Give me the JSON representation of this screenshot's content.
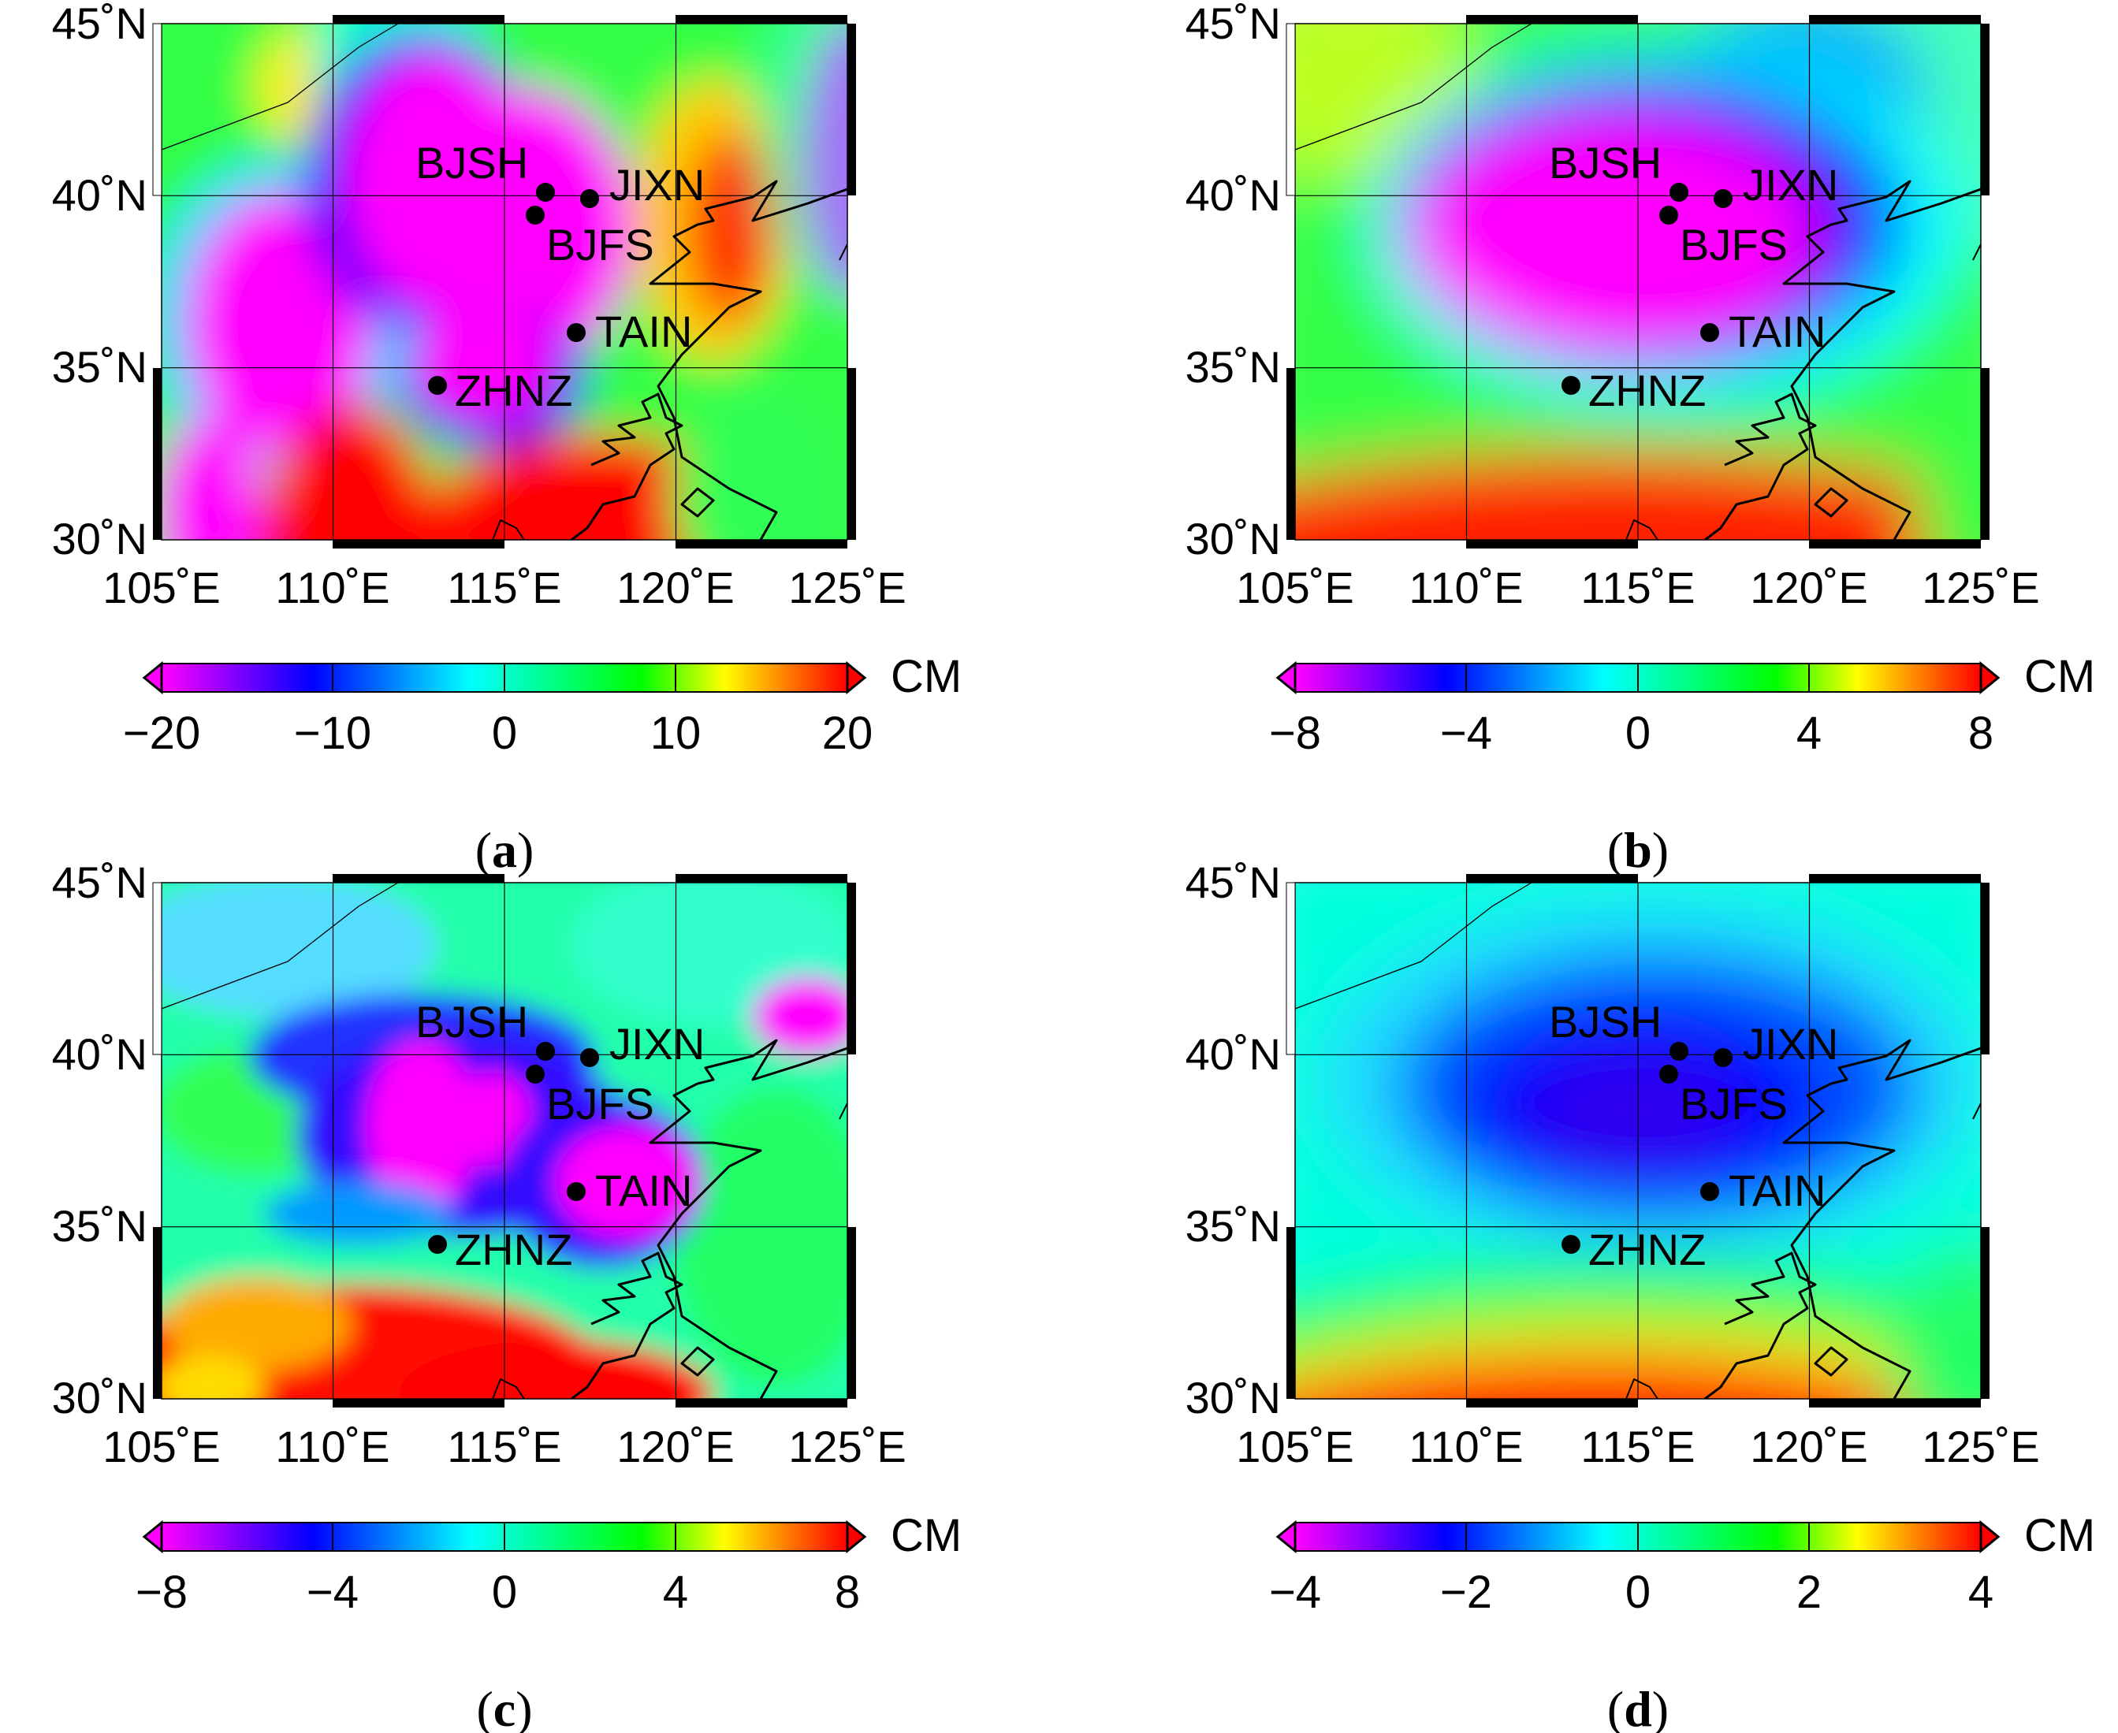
{
  "figure": {
    "lon_ticks": [
      "105˚E",
      "110˚E",
      "115˚E",
      "120˚E",
      "125˚E"
    ],
    "lat_ticks": [
      "30˚N",
      "35˚N",
      "40˚N",
      "45˚N"
    ],
    "lon_range": [
      105,
      125
    ],
    "lat_range": [
      30,
      45
    ],
    "stations": [
      {
        "name": "BJSH",
        "lon": 116.2,
        "lat": 40.3
      },
      {
        "name": "JIXN",
        "lon": 117.5,
        "lat": 40.1
      },
      {
        "name": "BJFS",
        "lon": 115.9,
        "lat": 39.6
      },
      {
        "name": "TAIN",
        "lon": 117.1,
        "lat": 36.2
      },
      {
        "name": "ZHNZ",
        "lon": 113.1,
        "lat": 34.5
      }
    ],
    "colorbar_unit": "CM",
    "colors": {
      "colormap": [
        "#ff00ff",
        "#0000ff",
        "#00ffff",
        "#00ff00",
        "#ffff00",
        "#ff0000"
      ]
    }
  },
  "panels": [
    {
      "id": "a",
      "caption_letter": "a",
      "colorbar_ticks": [
        "−20",
        "−10",
        "0",
        "10",
        "20"
      ]
    },
    {
      "id": "b",
      "caption_letter": "b",
      "colorbar_ticks": [
        "−8",
        "−4",
        "0",
        "4",
        "8"
      ]
    },
    {
      "id": "c",
      "caption_letter": "c",
      "colorbar_ticks": [
        "−8",
        "−4",
        "0",
        "4",
        "8"
      ]
    },
    {
      "id": "d",
      "caption_letter": "d",
      "colorbar_ticks": [
        "−4",
        "−2",
        "0",
        "2",
        "4"
      ]
    }
  ]
}
